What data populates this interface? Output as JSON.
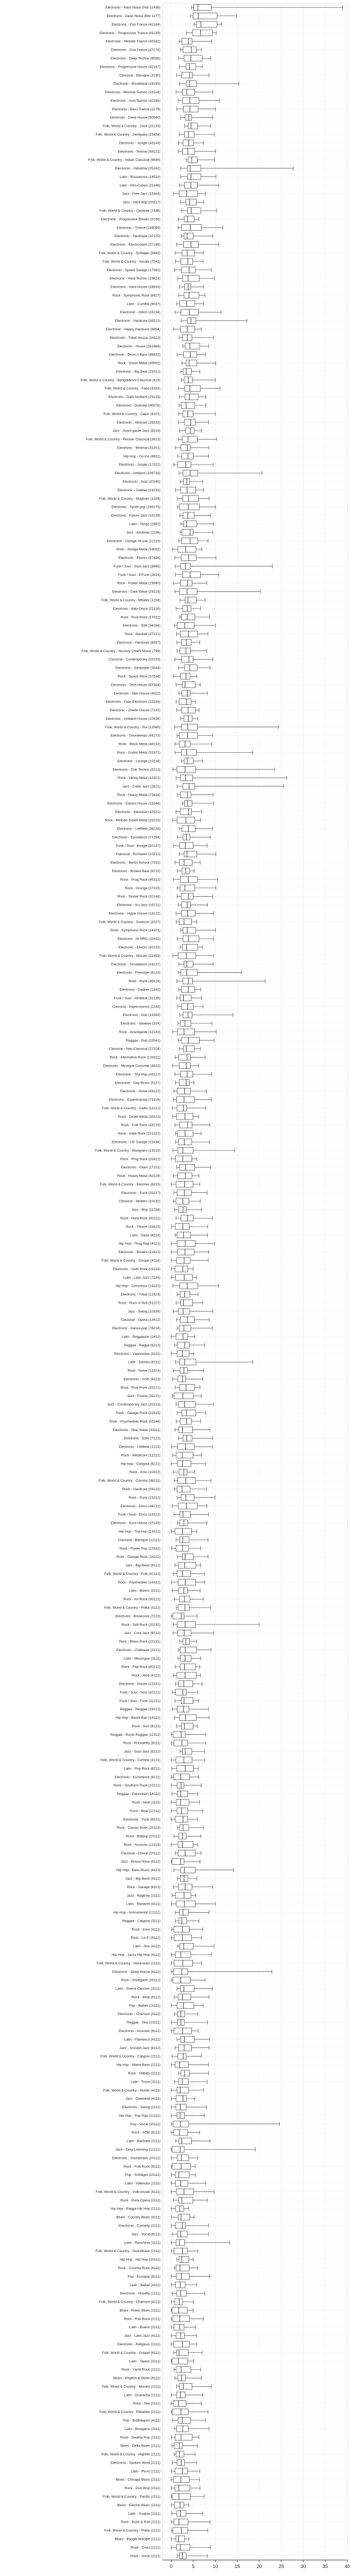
{
  "chart_data": {
    "type": "boxplot",
    "orientation": "horizontal",
    "title": "",
    "xlabel": "",
    "ylabel": "",
    "xlim": [
      -2,
      40
    ],
    "xticks": [
      0,
      5,
      10,
      15,
      20,
      25,
      30,
      35,
      40
    ],
    "grid": true,
    "legend": "none",
    "colors": {
      "box": "#ffffff",
      "line": "#333333",
      "grid": "#e4e4e4",
      "outlier": "#333333"
    },
    "categories": [
      "Electronic - Hard Noise (Hdr 11436)",
      "Electronic - Deep Noise (Bbr 1177)",
      "Electronic - Fun Trance (42184)",
      "Electronic - Progressive Trance (41159)",
      "Electronic - Melodic Trance (43162)",
      "Electronic - Goa Trance (47174)",
      "Electronic - Deep Techno (9556)",
      "Electronic - Progressive House (42167)",
      "Classical - Baroque (3150)",
      "Electronic - Breakbeat (18193)",
      "Electronic - Minimal Techno (31524)",
      "Electronic - Acid Techno (42184)",
      "Electronic - Bass Trance (2179)",
      "Electronic - Deep House (50540)",
      "Folk, World & Country - Zouk (22133)",
      "Folk, World & Country - Zemlyaka (15454)",
      "Electronic - Jungle (43143)",
      "Electronic - Techno (59121)",
      "Folk, World & Country - Indian Classical (9846)",
      "Electronic - Industrial (25162)",
      "Latin - Bossanova (14533)",
      "Latin - Afro-Cuban (21148)",
      "Jazz - Free Jazz (15444)",
      "Jazz - Hard Bop (20217)",
      "Folk, World & Country - Qawwali (7436)",
      "Electronic - Progressive Breaks (5106)",
      "Electronic - Trance (144069)",
      "Electronic - Hardstyle (32175)",
      "Electronic - Electroclash (27198)",
      "Folk, World & Country - Schlager (8449)",
      "Folk, World & Country - Kerala (7042)",
      "Electronic - Speed Garage (17592)",
      "Electronic - Hard Techno (19814)",
      "Electronic - Hard House (28833)",
      "Rock - Symphonic Rock (8427)",
      "Latin - Cumbia (8037)",
      "Electronic - Glitch (15134)",
      "Electronic - Hardcore (38213)",
      "Electronic - Happy Hardcore (6854)",
      "Electronic - Tribal House (24113)",
      "Electronic - House (351884)",
      "Electronic - Drum n Bass (48632)",
      "Rock - Doom Metal (39002)",
      "Electronic - Big Beat (21012)",
      "Folk, World & Country - Bangladeshi Classical (419)",
      "Folk, World & Country - Fado (4183)",
      "Electronic - Dark Ambient (23133)",
      "Electronic - Dubstep (40076)",
      "Folk, World & Country - Cajun (4101)",
      "Electronic - Abstract (28333)",
      "Jazz - Avant-garde Jazz (8319)",
      "Folk, World & Country - Persian Classical (3913)",
      "Electronic - Minimal (31201)",
      "Hip Hop - Go-Go (4822)",
      "Electronic - Jungle (17222)",
      "Electronic - Ambient (106716)",
      "Electronic - Acid (20145)",
      "Electronic - Gabber (19233)",
      "Folk, World & Country - Mugham (1326)",
      "Electronic - Synth-pop (169175)",
      "Electronic - Future Jazz (16139)",
      "Latin - Tango (2982)",
      "Jazz - Afrobeat (2236)",
      "Electronic - Garage House (12115)",
      "Rock - Sludge Metal (16092)",
      "Electronic - Electro (97428)",
      "Funk / Soul - Soul-Jazz (8945)",
      "Funk / Soul - P.Funk (2814)",
      "Rock - Power Metal (19390)",
      "Electronic - Dark Wave (29214)",
      "Folk, World & Country - Mbalax (1204)",
      "Electronic - Italo-Disco (21126)",
      "Rock - Post-Rock (17022)",
      "Electronic - IDM (34166)",
      "Rock - Neofolk (27221)",
      "Electronic - Hardcore (6557)",
      "Folk, World & Country - Nursery Chiefs Music (799)",
      "Classical - Contemporary (33103)",
      "Electronic - Jumpstyle (3544)",
      "Rock - Space Rock (10244)",
      "Electronic - Tech House (67344)",
      "Electronic - Italo House (4022)",
      "Electronic - Gain Electronic (22316)",
      "Electronic - Ghetto House (7232)",
      "Electronic - Ambient House (10334)",
      "Folk, World & Country - Rai (12560)",
      "Electronic - Downtempo (94173)",
      "Rock - Black Metal (49132)",
      "Rock - Gothic Metal (33371)",
      "Electronic - Lounge (10234)",
      "Electronic - Dub Techno (6213)",
      "Rock - Viking Metal (12321)",
      "Jazz - Cubic Jazz (2621)",
      "Rock - Heavy Metal (73418)",
      "Electronic - Electro House (18144)",
      "Electronic - Industrial (17621)",
      "Rock - Melodic Death Metal (33215)",
      "Electronic - Leftfield (36228)",
      "Electronic - Eurodance (77254)",
      "Funk / Soul - Boogie (20147)",
      "Classical - Romantic (10212)",
      "Electronic - Berlin-School (7331)",
      "Electronic - Broken Beat (6722)",
      "Rock - Prog Rock (45312)",
      "Rock - Grunge (27215)",
      "Rock - Stoner Rock (20144)",
      "Electronic - Nu Jazz (15211)",
      "Electronic - Hyper House (18122)",
      "Folk, World & Country - Soukous (3127)",
      "Rock - Symphonic Rock (14321)",
      "Electronic - Hi NRG (10411)",
      "Electronic - Electro (42132)",
      "Folk, World & Country - Mizrahi (22453)",
      "Electronic - Turntablism (16137)",
      "Electronic - Freestyle (6123)",
      "Rock - Punk (49214)",
      "Electronic - Gabber (1342)",
      "Funk / Soul - Afrobeat (32135)",
      "Classical - Impressionist (2244)",
      "Electronic - Dub (19343)",
      "Electronic - Skweee (314)",
      "Rock - Avantgarde (12133)",
      "Reggae - Dub (22541)",
      "Classical - Neo-Classical (27224)",
      "Rock - Alternative Rock (134311)",
      "Electronic - Musique Concrete (4632)",
      "Electronic - Trip Hop (43217)",
      "Electronic - Gay Music (5117)",
      "Electronic - Noise (43122)",
      "Electronic - Experimental (71316)",
      "Folk, World & Country - Celtic (11212)",
      "Rock - Death Metal (33113)",
      "Rock - Folk Rock (43215)",
      "Rock - Indie Rock (101322)",
      "Electronic - UK Garage (21434)",
      "Folk, World & Country - Bluegrass (14315)",
      "Rock - Prog Rock (33412)",
      "Electronic - Glam (17211)",
      "Rock - Heavy Metal (42124)",
      "Folk, World & Country - Klezmer (6215)",
      "Electronic - Funk (33217)",
      "Classical - Modern (10132)",
      "Jazz - Bop (11234)",
      "Rock - Hard Rock (82211)",
      "Rock - Thrash (33415)",
      "Latin - Salsa (8214)",
      "Hip Hop - Thug Rap (4221)",
      "Electronic - Breaks (22413)",
      "Folk, World & Country - Gospel (4214)",
      "Electronic - Goth Rock (23114)",
      "Latin - Latin Jazz (7226)",
      "Hip Hop - Conscious (14322)",
      "Electronic - Tribal (12423)",
      "Rock - Rock & Roll (51227)",
      "Jazz - Swing (10334)",
      "Classical - Opera (13412)",
      "Electronic - Dance-pop (76214)",
      "Latin - Reggaeton (2412)",
      "Reggae - Ragga (6213)",
      "Electronic - Vaporwave (3211)",
      "Latin - Samba (6211)",
      "Rock - Noise (12314)",
      "Electronic - Goth (4323)",
      "Rock - Post-Punk (33121)",
      "Jazz - Fusion (31121)",
      "Jazz - Contemporary Jazz (32213)",
      "Rock - Garage Rock (22315)",
      "Rock - Psychedelic Rock (51144)",
      "Electronic - New Wave (33111)",
      "Electronic - Ebm (7222)",
      "Electronic - Leftfield (1214)",
      "Rock - Metalcore (12221)",
      "Hip Hop - Gangsta (8221)",
      "Rock - Emo (10312)",
      "Folk, World & Country - Country (36211)",
      "Rock - Hardcore (33122)",
      "Rock - Punk (15213)",
      "Electronic - Disco (44122)",
      "Funk / Soul - Disco (14221)",
      "Electronic - Euro House (10143)",
      "Hip Hop - Trip Hop (14312)",
      "Classical - Baroque (12111)",
      "Rock - Power Pop (12332)",
      "Rock - Garage Rock (14211)",
      "Jazz - Big Band (8112)",
      "Folk, World & Country - Folk (42113)",
      "Rock - Psychedelic (14312)",
      "Latin - Bolero (3211)",
      "Rock - Art Rock (30122)",
      "Folk, World & Country - Polka (4112)",
      "Electronic - Breakcore (7223)",
      "Rock - Soft Rock (20132)",
      "Jazz - Cool Jazz (8212)",
      "Rock - Blues Rock (22131)",
      "Electronic - Chillwave (2121)",
      "Latin - Merengue (3111)",
      "Rock - Pop Rock (80212)",
      "Rock - Mod (4121)",
      "Electronic - House (12331)",
      "Funk / Soul - Soul (42121)",
      "Funk / Soul - Funk (31211)",
      "Reggae - Reggae (19212)",
      "Hip Hop - Boom Bap (14121)",
      "Rock - Surf (6121)",
      "Reggae - Roots Reggae (12112)",
      "Rock - Rockabilly (8111)",
      "Jazz - Soul-Jazz (6212)",
      "Folk, World & Country - Cumbia (4131)",
      "Latin - Pop Rock (6211)",
      "Electronic - Eurodance (8211)",
      "Rock - Southern Rock (10121)",
      "Reggae - Dancehall (14122)",
      "Rock - Mod (3111)",
      "Rock - Beat (12111)",
      "Electronic - Funk (8221)",
      "Rock - Classic Rock (20114)",
      "Rock - Britpop (10111)",
      "Rock - Acoustic (12114)",
      "Classical - Choral (10111)",
      "Jazz - Bossa Nova (6112)",
      "Hip Hop - Bass Music (4113)",
      "Jazz - Big Band (4112)",
      "Rock - Garage (6113)",
      "Jazz - Ragtime (2111)",
      "Latin - Mariachi (4111)",
      "Hip Hop - Instrumental (12111)",
      "Reggae - Calypso (3111)",
      "Rock - Emo (4111)",
      "Rock - Lo-Fi (8112)",
      "Latin - Son (4111)",
      "Hip Hop - Jazzy Hip-Hop (8111)",
      "Folk, World & Country - Hindustani (2111)",
      "Electronic - Deep House (6111)",
      "Rock - Shoegaze (10112)",
      "Latin - Nueva Cancion (3111)",
      "Rock - Beat (8112)",
      "Pop - Ballad (14111)",
      "Electronic - Chanson (4111)",
      "Reggae - Ska (10111)",
      "Electronic - Acoustic (6111)",
      "Latin - Flamenco (4111)",
      "Jazz - Smooth Jazz (8112)",
      "Folk, World & Country - Calypso (2111)",
      "Hip Hop - Miami Bass (2111)",
      "Rock - Hillbilly (2111)",
      "Latin - Trova (3111)",
      "Folk, World & Country - Nordic (4111)",
      "Jazz - Dixieland (4111)",
      "Electronic - Swing (2111)",
      "Hip Hop - Pop Rap (12111)",
      "Pop - Vocal (20111)",
      "Rock - AOR (8111)",
      "Latin - Bachata (2111)",
      "Jazz - Easy Listening (12111)",
      "Electronic - Soundtrack (10111)",
      "Rock - Folk Rock (8111)",
      "Pop - Schlager (10111)",
      "Latin - Vallenato (2111)",
      "Folk, World & Country - Volksmusik (6111)",
      "Rock - Rock Opera (2111)",
      "Hip Hop - Ragga Hip Hop (2111)",
      "Blues - Country Blues (4111)",
      "Electronic - Comedy (2111)",
      "Jazz - Vocal (8111)",
      "Latin - Ranchera (3111)",
      "Folk, World & Country - Soundtrack (2111)",
      "Hip Hop - Hip Hop (20111)",
      "Rock - Country Rock (6111)",
      "Pop - Europop (8111)",
      "Latin - Ballad (4111)",
      "Electronic - Novelty (2111)",
      "Folk, World & Country - Chanson (4111)",
      "Blues - Piano Blues (2111)",
      "Rock - Pub Rock (2111)",
      "Latin - Bolero (2111)",
      "Jazz - Latin Jazz (4111)",
      "Electronic - Religious (2111)",
      "Folk, World & Country - Gospel (6111)",
      "Latin - Tejano (2111)",
      "Rock - Yacht Rock (2111)",
      "Blues - Rhythm & Blues (6111)",
      "Folk, World & Country - Mizrahi (2111)",
      "Latin - Guaracha (2111)",
      "Rock - Ska (2111)",
      "Folk, World & Country - Rebetiko (2111)",
      "Pop - Bubblegum (4111)",
      "Latin - Boogaloo (2111)",
      "Rock - Swamp Pop (2111)",
      "Blues - Delta Blues (2111)",
      "Folk, World & Country - Highlife (2111)",
      "Electronic - Spoken Word (2111)",
      "Latin - Porro (2111)",
      "Blues - Chicago Blues (2111)",
      "Rock - Doo Wop (2111)",
      "Folk, World & Country - Pacific (2111)",
      "Blues - Electric Blues (2111)",
      "Latin - Guajira (2111)",
      "Rock - Rock & Roll (2111)",
      "Folk, World & Country - Polka (2111)",
      "Blues - Boogie Woogie (2111)",
      "Rock - Crust (2111)",
      "Rock - Vocal (2111)"
    ]
  }
}
